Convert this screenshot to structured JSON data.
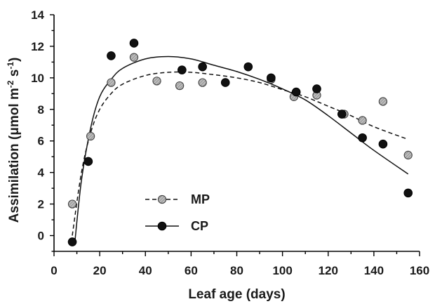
{
  "chart_data": {
    "type": "scatter",
    "xlabel": "Leaf age (days)",
    "ylabel_parts": [
      "Assimilation (",
      "μ",
      "mol m",
      "-2",
      " s",
      "-1",
      ")"
    ],
    "xlim": [
      0,
      160
    ],
    "ylim": [
      -1,
      14
    ],
    "x_ticks": [
      0,
      20,
      40,
      60,
      80,
      100,
      120,
      140,
      160
    ],
    "y_ticks": [
      0,
      2,
      4,
      6,
      8,
      10,
      12,
      14
    ],
    "grid": false,
    "legend_position": "lower-left",
    "series": [
      {
        "name": "MP",
        "marker": "gray-hatched-circle",
        "fit_style": "dashed",
        "color": "#9a9a9a",
        "points": [
          {
            "x": 8,
            "y": 2.0
          },
          {
            "x": 16,
            "y": 6.3
          },
          {
            "x": 25,
            "y": 9.7
          },
          {
            "x": 35,
            "y": 11.3
          },
          {
            "x": 45,
            "y": 9.8
          },
          {
            "x": 55,
            "y": 9.5
          },
          {
            "x": 65,
            "y": 9.7
          },
          {
            "x": 95,
            "y": 9.9
          },
          {
            "x": 105,
            "y": 8.8
          },
          {
            "x": 115,
            "y": 8.9
          },
          {
            "x": 127,
            "y": 7.7
          },
          {
            "x": 135,
            "y": 7.3
          },
          {
            "x": 144,
            "y": 8.5
          },
          {
            "x": 155,
            "y": 5.1
          }
        ],
        "fit": [
          {
            "x": 8,
            "y": 0.0
          },
          {
            "x": 12,
            "y": 4.0
          },
          {
            "x": 16,
            "y": 6.5
          },
          {
            "x": 20,
            "y": 8.0
          },
          {
            "x": 25,
            "y": 9.0
          },
          {
            "x": 30,
            "y": 9.6
          },
          {
            "x": 40,
            "y": 10.15
          },
          {
            "x": 50,
            "y": 10.35
          },
          {
            "x": 60,
            "y": 10.35
          },
          {
            "x": 70,
            "y": 10.2
          },
          {
            "x": 80,
            "y": 10.0
          },
          {
            "x": 90,
            "y": 9.7
          },
          {
            "x": 100,
            "y": 9.25
          },
          {
            "x": 110,
            "y": 8.8
          },
          {
            "x": 120,
            "y": 8.2
          },
          {
            "x": 130,
            "y": 7.6
          },
          {
            "x": 140,
            "y": 6.9
          },
          {
            "x": 155,
            "y": 6.1
          }
        ]
      },
      {
        "name": "CP",
        "marker": "black-circle",
        "fit_style": "solid",
        "color": "#111111",
        "points": [
          {
            "x": 8,
            "y": -0.4
          },
          {
            "x": 15,
            "y": 4.7
          },
          {
            "x": 25,
            "y": 11.4
          },
          {
            "x": 35,
            "y": 12.2
          },
          {
            "x": 56,
            "y": 10.5
          },
          {
            "x": 65,
            "y": 10.7
          },
          {
            "x": 75,
            "y": 9.7
          },
          {
            "x": 85,
            "y": 10.7
          },
          {
            "x": 95,
            "y": 10.0
          },
          {
            "x": 106,
            "y": 9.1
          },
          {
            "x": 115,
            "y": 9.3
          },
          {
            "x": 126,
            "y": 7.7
          },
          {
            "x": 135,
            "y": 6.2
          },
          {
            "x": 144,
            "y": 5.8
          },
          {
            "x": 155,
            "y": 2.7
          }
        ],
        "fit": [
          {
            "x": 9,
            "y": -0.6
          },
          {
            "x": 12,
            "y": 3.5
          },
          {
            "x": 16,
            "y": 6.8
          },
          {
            "x": 20,
            "y": 8.8
          },
          {
            "x": 25,
            "y": 9.9
          },
          {
            "x": 30,
            "y": 10.6
          },
          {
            "x": 40,
            "y": 11.2
          },
          {
            "x": 50,
            "y": 11.35
          },
          {
            "x": 60,
            "y": 11.2
          },
          {
            "x": 70,
            "y": 10.8
          },
          {
            "x": 80,
            "y": 10.4
          },
          {
            "x": 90,
            "y": 9.9
          },
          {
            "x": 100,
            "y": 9.3
          },
          {
            "x": 110,
            "y": 8.6
          },
          {
            "x": 120,
            "y": 7.6
          },
          {
            "x": 130,
            "y": 6.5
          },
          {
            "x": 140,
            "y": 5.4
          },
          {
            "x": 155,
            "y": 3.9
          }
        ]
      }
    ]
  }
}
